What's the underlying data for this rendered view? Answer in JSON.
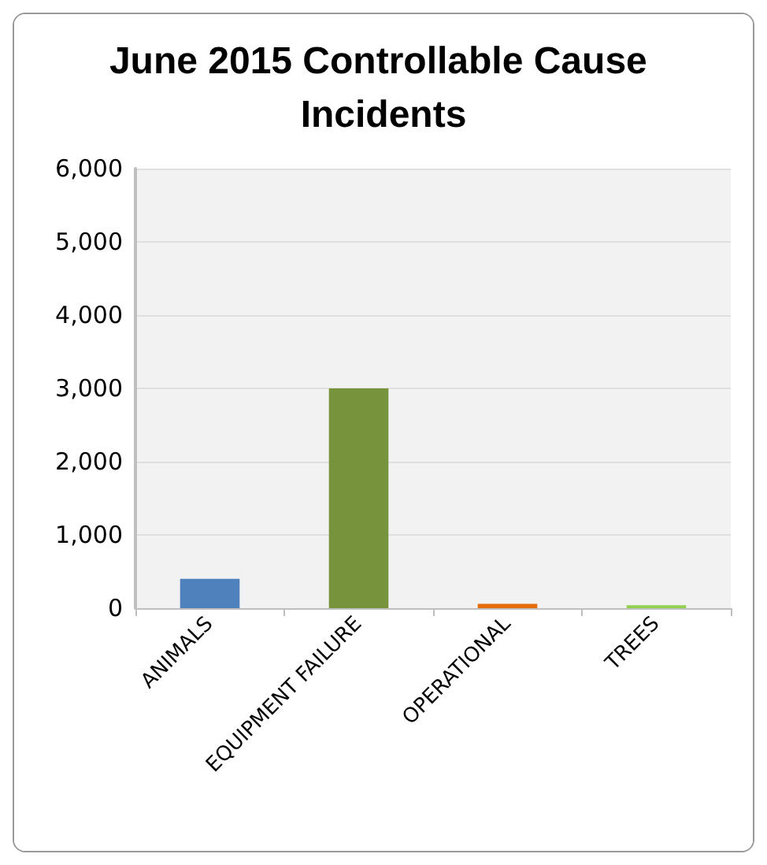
{
  "chart_data": {
    "type": "bar",
    "title": "June 2015 Controllable Cause Incidents",
    "categories": [
      "ANIMALS",
      "EQUIPMENT FAILURE",
      "OPERATIONAL",
      "TREES"
    ],
    "values": [
      400,
      3000,
      60,
      40
    ],
    "colors": [
      "#4f81bd",
      "#77933c",
      "#e46c0a",
      "#92d050"
    ],
    "ylim": [
      0,
      6000
    ],
    "yticks": [
      0,
      {
        "value": 1000,
        "label": "1,000"
      },
      {
        "value": 2000,
        "label": "2,000"
      },
      {
        "value": 3000,
        "label": "3,000"
      },
      {
        "value": 4000,
        "label": "4,000"
      },
      {
        "value": 5000,
        "label": "5,000"
      },
      {
        "value": 6000,
        "label": "6,000"
      }
    ],
    "grid": "y"
  }
}
